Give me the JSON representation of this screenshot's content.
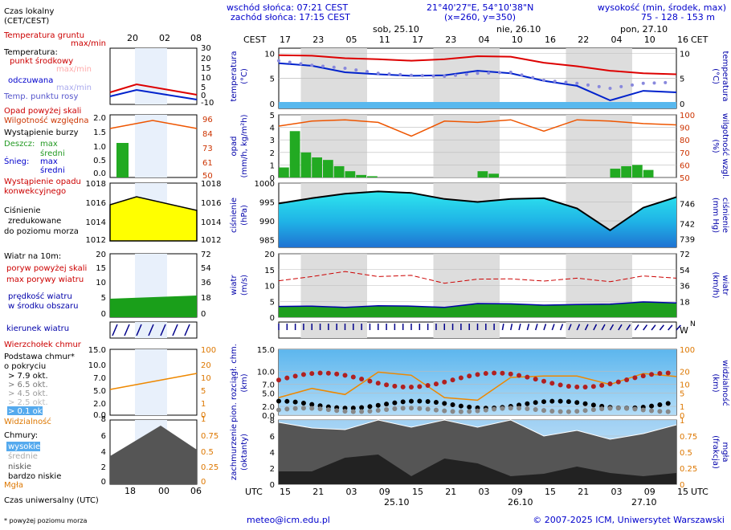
{
  "header": {
    "sunrise": "wschód słońca: 07:21 CEST",
    "sunset": "zachód słońca: 17:15 CEST",
    "coords": "21°40'27\"E, 54°10'38\"N",
    "grid": "(x=260,  y=350)",
    "elevation_title": "wysokość (min, środek, max)",
    "elevation_values": "75 - 128 - 153 m"
  },
  "top_axis": {
    "tz_left": "CEST",
    "tz_right": "CET",
    "hours": [
      "17",
      "23",
      "05",
      "11",
      "17",
      "23",
      "04",
      "10",
      "16",
      "22",
      "04",
      "10",
      "16"
    ],
    "days": [
      "sob, 25.10",
      "nie, 26.10",
      "pon, 27.10"
    ]
  },
  "bottom_axis": {
    "tz_left": "UTC",
    "tz_right": "UTC",
    "hours": [
      "15",
      "21",
      "03",
      "09",
      "15",
      "21",
      "03",
      "09",
      "15",
      "21",
      "03",
      "09",
      "15"
    ],
    "dates": [
      "25.10",
      "26.10",
      "27.10"
    ]
  },
  "legend": {
    "local_time": "Czas lokalny",
    "local_time_tz": "(CET/CEST)",
    "legend_hours": [
      "20",
      "02",
      "08"
    ],
    "legend_utc_hours": [
      "18",
      "00",
      "06"
    ],
    "soil_temp": "Temperatura gruntu",
    "soil_temp_sub": "max/min",
    "temperature": "Temperatura:",
    "mid_point": "punkt środkowy",
    "range": "max/min",
    "perceived": "odczuwana",
    "perceived_range": "max/min",
    "dew_point": "Temp. punktu rosy",
    "precip_over": "Opad powyżej skali",
    "humidity": "Wilgotność względna",
    "storm": "Wystąpienie burzy",
    "rain": "Deszcz:",
    "rain_max": "max",
    "rain_mean": "średni",
    "snow": "Śnieg:",
    "snow_max": "max",
    "snow_mean": "średni",
    "conv_precip": "Wystąpienie opadu",
    "conv_precip2": "konwekcyjnego",
    "pressure_1": "Ciśnienie",
    "pressure_2": "zredukowane",
    "pressure_3": "do poziomu morza",
    "wind_10m": "Wiatr na 10m:",
    "gust_over": "poryw powyżej skali",
    "gust_max": "max porywy wiatru",
    "wind_speed": "prędkość wiatru",
    "wind_speed2": "w środku obszaru",
    "wind_dir": "kierunek wiatru",
    "cloud_top": "Wierzchołek chmur",
    "cloud_base": "Podstawa chmur*",
    "cloud_base2": "o pokryciu",
    "okt_79": "> 7.9 okt.",
    "okt_65": "> 6.5 okt.",
    "okt_45": "> 4.5 okt.",
    "okt_25": "> 2.5 okt.",
    "okt_01": "> 0.1 okt.",
    "visibility": "Widzialność",
    "clouds": "Chmury:",
    "high": "wysokie",
    "mid": "średnie",
    "low": "niskie",
    "very_low": "bardzo niskie",
    "fog": "Mgła",
    "utc": "Czas uniwersalny (UTC)",
    "footnote": "* powyżej poziomu morza"
  },
  "panel_labels": {
    "temp_l1": "temperatura",
    "temp_l2": "(°C)",
    "temp_r": "(°C)",
    "temp_r2": "temperatura",
    "precip_l1": "opad",
    "precip_l2": "(mm/h, kg/m²h)",
    "precip_r1": "(%)",
    "precip_r2": "wilgotność wzgl.",
    "press_l1": "ciśnienie",
    "press_l2": "(hPa)",
    "press_r1": "(mm Hg)",
    "press_r2": "ciśnienie",
    "wind_l1": "wiatr",
    "wind_l2": "(m/s)",
    "wind_r1": "(km/h)",
    "wind_r2": "wiatr",
    "cloud_l1": "pion. rozciągł. chm.",
    "cloud_l2": "(km)",
    "cloud_r1": "(km)",
    "cloud_r2": "widzialność",
    "cover_l1": "zachmurzenie",
    "cover_l2": "(oktanty)",
    "cover_r1": "(frakcja)",
    "cover_r2": "mgła"
  },
  "footer": {
    "email": "meteo@icm.edu.pl",
    "copyright": "© 2007-2025 ICM, Uniwersytet Warszawski"
  },
  "colors": {
    "temperature": "#dd0000",
    "perceived": "#0022cc",
    "dew_point": "#8888dd",
    "humidity": "#ee5500",
    "rain": "#22aa22",
    "pressure_line": "#000000",
    "wind_gust": "#cc0000",
    "wind_speed_fill": "#1f9f1f",
    "wind_dir": "#00008b",
    "visibility": "#ee8800",
    "night_band": "#dddddd"
  },
  "chart_data": [
    {
      "type": "line",
      "name": "temperature",
      "ylim": [
        -1,
        11
      ],
      "yticks": [
        "0",
        "5",
        "10"
      ],
      "x_hours": [
        0,
        6,
        12,
        18,
        24,
        30,
        36,
        42,
        48,
        54,
        60,
        66,
        72
      ],
      "series": [
        {
          "values": [
            9.6,
            9.5,
            9.0,
            8.8,
            8.5,
            8.8,
            9.4,
            9.3,
            8.1,
            7.4,
            6.5,
            6.0,
            5.8
          ]
        },
        {
          "values": [
            8.0,
            7.5,
            6.2,
            5.8,
            5.5,
            5.6,
            6.5,
            6.0,
            4.5,
            3.5,
            0.6,
            2.5,
            2.2
          ]
        },
        {
          "values": [
            8.5,
            7.6,
            7.0,
            6.0,
            5.6,
            5.4,
            6.0,
            6.2,
            4.6,
            4.0,
            3.0,
            4.0,
            4.2
          ]
        }
      ]
    },
    {
      "type": "bar",
      "name": "precipitation_humidity",
      "ylim": [
        0,
        5
      ],
      "yticks": [
        "0",
        "1",
        "2",
        "3",
        "4",
        "5"
      ],
      "yticks_right": [
        "50",
        "60",
        "70",
        "80",
        "90",
        "100"
      ],
      "humidity_x": [
        0,
        6,
        12,
        18,
        24,
        30,
        36,
        42,
        48,
        54,
        60,
        66,
        72
      ],
      "humidity": [
        91,
        95,
        96,
        94,
        83,
        95,
        94,
        96,
        87,
        96,
        95,
        93,
        92
      ],
      "rain_x": [
        0,
        2,
        4,
        6,
        8,
        10,
        12,
        14,
        16,
        36,
        38,
        60,
        62,
        64,
        66
      ],
      "rain": [
        0.8,
        3.7,
        2.0,
        1.6,
        1.4,
        0.9,
        0.5,
        0.2,
        0.1,
        0.5,
        0.3,
        0.7,
        0.9,
        1.0,
        0.6
      ]
    },
    {
      "type": "area",
      "name": "pressure",
      "ylim": [
        983,
        1000
      ],
      "yticks": [
        "985",
        "990",
        "995",
        "1000"
      ],
      "yticks_right": [
        "739",
        "742",
        "746"
      ],
      "x_hours": [
        0,
        6,
        12,
        18,
        24,
        30,
        36,
        42,
        48,
        54,
        60,
        66,
        72
      ],
      "values": [
        994.6,
        996.0,
        997.2,
        997.8,
        997.4,
        995.8,
        995.0,
        995.8,
        996.0,
        993.3,
        987.5,
        993.5,
        996.3
      ]
    },
    {
      "type": "area",
      "name": "wind",
      "ylim": [
        0,
        20
      ],
      "yticks": [
        "0",
        "5",
        "10",
        "15",
        "20"
      ],
      "yticks_right": [
        "18",
        "36",
        "54",
        "72"
      ],
      "x_hours": [
        0,
        6,
        12,
        18,
        24,
        30,
        36,
        42,
        48,
        54,
        60,
        66,
        72
      ],
      "wind": [
        3.4,
        3.5,
        3.1,
        3.6,
        3.5,
        3.1,
        4.3,
        4.2,
        3.8,
        4.0,
        4.1,
        4.8,
        4.5
      ],
      "gust": [
        11.5,
        12.8,
        14.4,
        12.8,
        13.2,
        10.7,
        12.0,
        12.1,
        11.4,
        12.3,
        11.2,
        13.0,
        12.3
      ]
    },
    {
      "type": "scatter",
      "name": "cloud_base_visibility",
      "ylim": [
        0,
        15
      ],
      "yticks": [
        "0.0",
        "2.0",
        "5.0",
        "7.0",
        "10.0",
        "15.0"
      ],
      "yticks_right": [
        "0",
        "1",
        "5",
        "10",
        "20",
        "100"
      ],
      "x_hours": [
        0,
        6,
        12,
        18,
        24,
        30,
        36,
        42,
        48,
        54,
        60,
        66,
        72
      ],
      "visibility": [
        4.0,
        6.1,
        4.7,
        9.8,
        9.1,
        4.0,
        3.4,
        8.6,
        8.9,
        8.9,
        7.0,
        9.5,
        8.8
      ]
    },
    {
      "type": "area",
      "name": "cloud_cover",
      "ylim": [
        0,
        8
      ],
      "yticks": [
        "0",
        "2",
        "4",
        "6",
        "8"
      ],
      "yticks_right": [
        "0",
        "0.25",
        "0.5",
        "0.75",
        "1"
      ],
      "x_hours": [
        0,
        6,
        12,
        18,
        24,
        30,
        36,
        42,
        48,
        54,
        60,
        66,
        72
      ],
      "total": [
        7.7,
        7.0,
        6.8,
        8.0,
        7.1,
        8.0,
        7.1,
        8.0,
        6.0,
        6.7,
        5.6,
        6.3,
        7.4
      ],
      "low": [
        1.6,
        1.6,
        3.3,
        3.7,
        1.0,
        3.2,
        2.6,
        1.0,
        1.3,
        2.2,
        1.4,
        1.0,
        1.4
      ]
    }
  ]
}
